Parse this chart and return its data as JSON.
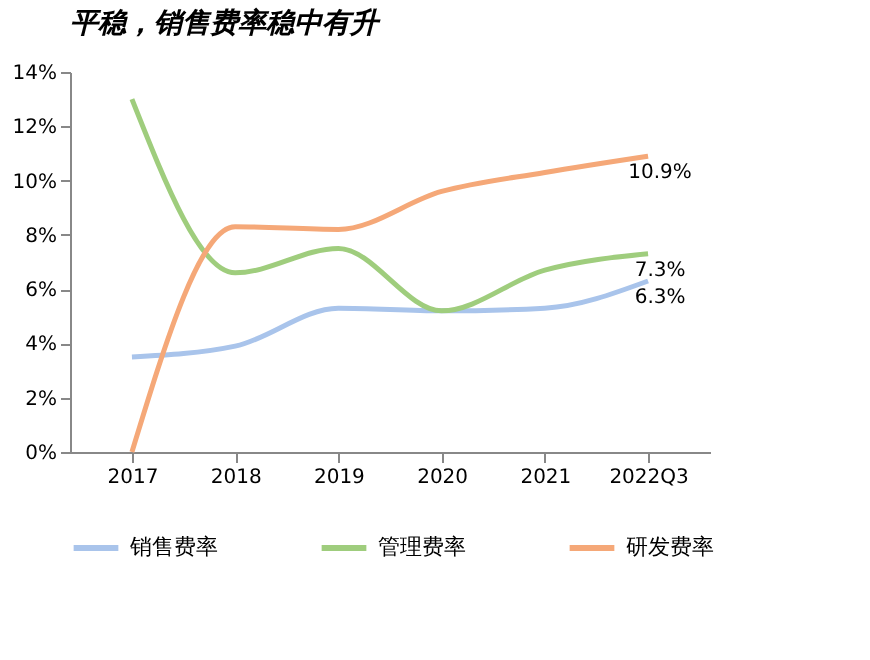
{
  "chart_data": {
    "type": "line",
    "title": "平稳，销售费率稳中有升",
    "categories": [
      "2017",
      "2018",
      "2019",
      "2020",
      "2021",
      "2022Q3"
    ],
    "series": [
      {
        "name": "销售费率",
        "color": "#a9c4eb",
        "values": [
          3.5,
          3.9,
          5.3,
          5.2,
          5.3,
          6.3
        ],
        "value_labels": [
          null,
          null,
          null,
          null,
          null,
          "6.3%"
        ]
      },
      {
        "name": "管理费率",
        "color": "#9fcd7d",
        "values": [
          13.0,
          6.6,
          7.5,
          5.2,
          6.7,
          7.3
        ],
        "value_labels": [
          null,
          null,
          null,
          null,
          null,
          "7.3%"
        ]
      },
      {
        "name": "研发费率",
        "color": "#f5a878",
        "values": [
          0.0,
          8.3,
          8.2,
          9.6,
          10.3,
          10.9
        ],
        "value_labels": [
          null,
          null,
          null,
          null,
          null,
          "10.9%"
        ]
      }
    ],
    "ylim": [
      0,
      14
    ],
    "yticks": [
      {
        "value": 0,
        "label": "0%"
      },
      {
        "value": 2,
        "label": "2%"
      },
      {
        "value": 4,
        "label": "4%"
      },
      {
        "value": 6,
        "label": "6%"
      },
      {
        "value": 8,
        "label": "8%"
      },
      {
        "value": 10,
        "label": "10%"
      },
      {
        "value": 12,
        "label": "12%"
      },
      {
        "value": 14,
        "label": "14%"
      }
    ],
    "grid": false,
    "legend": "bottom",
    "marker": "none",
    "line_style": "solid"
  }
}
